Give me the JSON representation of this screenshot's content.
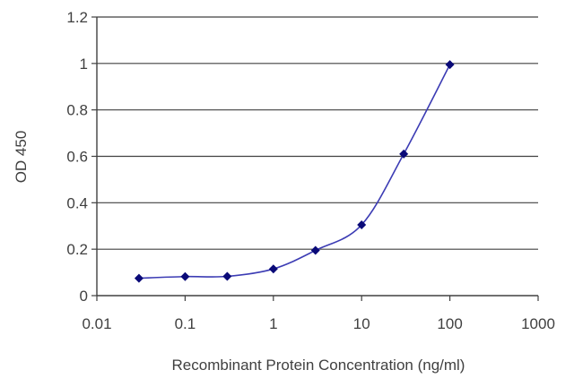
{
  "chart_data": {
    "type": "line",
    "title": "",
    "xlabel": "Recombinant Protein Concentration (ng/ml)",
    "ylabel": "OD 450",
    "x_scale": "log",
    "xlim": [
      0.01,
      1000
    ],
    "ylim": [
      0,
      1.2
    ],
    "x_ticks": [
      0.01,
      0.1,
      1,
      10,
      100,
      1000
    ],
    "x_tick_labels": [
      "0.01",
      "0.1",
      "1",
      "10",
      "100",
      "1000"
    ],
    "y_ticks": [
      0,
      0.2,
      0.4,
      0.6,
      0.8,
      1,
      1.2
    ],
    "y_tick_labels": [
      "0",
      "0.2",
      "0.4",
      "0.6",
      "0.8",
      "1",
      "1.2"
    ],
    "grid": "horizontal",
    "legend": "none",
    "series": [
      {
        "x": [
          0.03,
          0.1,
          0.3,
          1,
          3,
          10,
          30,
          100
        ],
        "y": [
          0.075,
          0.082,
          0.083,
          0.115,
          0.195,
          0.305,
          0.61,
          0.995
        ]
      }
    ],
    "colors": {
      "line": "#3c3cb4",
      "marker": "#0a0a78",
      "grid": "#404040",
      "text": "#404040"
    }
  }
}
